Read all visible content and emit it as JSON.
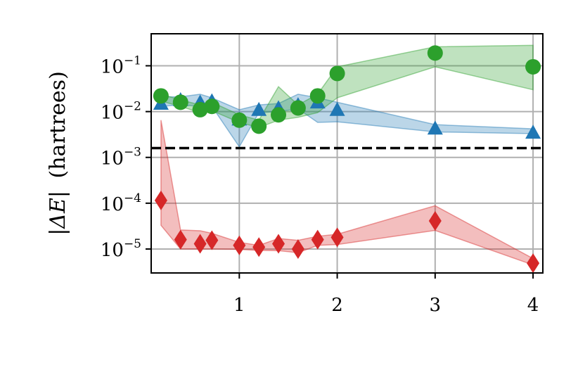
{
  "chart_data": {
    "type": "line",
    "xlabel": "",
    "ylabel": "|ΔE| (hartrees)",
    "ylabel_symbol": "|ΔE|",
    "ylabel_unit": "(hartrees)",
    "yscale": "log",
    "xlim": [
      0.1,
      4.1
    ],
    "ylim": [
      3e-06,
      0.5
    ],
    "xticks": [
      1,
      2,
      3,
      4
    ],
    "yticks": [
      {
        "value": 1e-05,
        "base": "10",
        "exp": "−5"
      },
      {
        "value": 0.0001,
        "base": "10",
        "exp": "−4"
      },
      {
        "value": 0.001,
        "base": "10",
        "exp": "−3"
      },
      {
        "value": 0.01,
        "base": "10",
        "exp": "−2"
      },
      {
        "value": 0.1,
        "base": "10",
        "exp": "−1"
      }
    ],
    "grid": true,
    "reference_line": {
      "y": 0.0016,
      "style": "dashed",
      "color": "#000000"
    },
    "series": [
      {
        "marker": "triangle",
        "color": "#1f77b4",
        "x": [
          0.2,
          0.4,
          0.6,
          0.72,
          1.0,
          1.2,
          1.4,
          1.6,
          1.8,
          2.0,
          3.0,
          4.0
        ],
        "y": [
          0.015,
          0.018,
          0.016,
          0.017,
          0.0068,
          0.011,
          0.012,
          0.014,
          0.016,
          0.011,
          0.0043,
          0.0035
        ],
        "lower": [
          0.013,
          0.014,
          0.013,
          0.013,
          0.0017,
          0.0095,
          0.01,
          0.0115,
          0.0058,
          0.006,
          0.0036,
          0.0033
        ],
        "upper": [
          0.021,
          0.021,
          0.024,
          0.02,
          0.011,
          0.014,
          0.015,
          0.024,
          0.02,
          0.016,
          0.0052,
          0.0042
        ]
      },
      {
        "marker": "circle",
        "color": "#2ca02c",
        "x": [
          0.2,
          0.4,
          0.6,
          0.72,
          1.0,
          1.2,
          1.4,
          1.6,
          1.8,
          2.0,
          3.0,
          4.0
        ],
        "y": [
          0.022,
          0.016,
          0.011,
          0.013,
          0.0065,
          0.0048,
          0.0085,
          0.012,
          0.022,
          0.068,
          0.19,
          0.095
        ],
        "lower": [
          0.017,
          0.013,
          0.0095,
          0.0105,
          0.0058,
          0.0045,
          0.0065,
          0.0075,
          0.0095,
          0.02,
          0.095,
          0.03
        ],
        "upper": [
          0.024,
          0.018,
          0.014,
          0.016,
          0.0085,
          0.0065,
          0.035,
          0.014,
          0.024,
          0.095,
          0.26,
          0.28
        ]
      },
      {
        "marker": "diamond",
        "color": "#d62728",
        "x": [
          0.2,
          0.4,
          0.6,
          0.72,
          1.0,
          1.2,
          1.4,
          1.6,
          1.8,
          2.0,
          3.0,
          4.0
        ],
        "y": [
          0.000115,
          1.6e-05,
          1.3e-05,
          1.55e-05,
          1.2e-05,
          1.1e-05,
          1.3e-05,
          1e-05,
          1.6e-05,
          1.8e-05,
          4.1e-05,
          4.9e-06
        ],
        "lower": [
          3.3e-05,
          1e-05,
          1e-05,
          1e-05,
          9.8e-06,
          9.3e-06,
          9.2e-06,
          8.3e-06,
          1.2e-05,
          1.25e-05,
          2.55e-05,
          4.5e-06
        ],
        "upper": [
          0.0065,
          2.6e-05,
          2.5e-05,
          2.2e-05,
          1.4e-05,
          1.2e-05,
          1.7e-05,
          1.55e-05,
          1.9e-05,
          2.1e-05,
          8.8e-05,
          6.2e-06
        ]
      }
    ]
  }
}
